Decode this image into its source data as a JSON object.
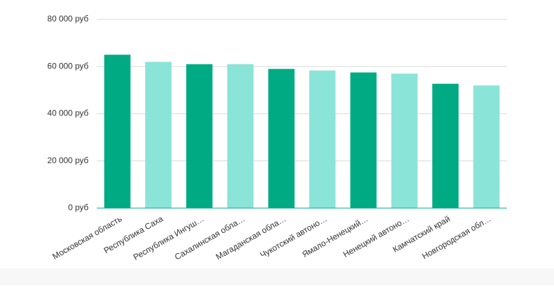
{
  "chart_data": {
    "type": "bar",
    "categories": [
      "Московская область",
      "Республика Саха",
      "Республика Ингуш…",
      "Сахалинская обла…",
      "Магаданская обла…",
      "Чукотский автоно…",
      "Ямало-Ненецкий…",
      "Ненецкий автоно…",
      "Камчатский край",
      "Новгородская обл…"
    ],
    "values": [
      65000,
      62000,
      61000,
      61000,
      59000,
      58300,
      57500,
      57000,
      52700,
      52000
    ],
    "colors": [
      "#00ab84",
      "#8be4d8",
      "#00ab84",
      "#8be4d8",
      "#00ab84",
      "#8be4d8",
      "#00ab84",
      "#8be4d8",
      "#00ab84",
      "#8be4d8"
    ],
    "ylim": [
      0,
      80000
    ],
    "yticks": [
      {
        "value": 0,
        "label": "0 руб"
      },
      {
        "value": 20000,
        "label": "20 000 руб"
      },
      {
        "value": 40000,
        "label": "40 000 руб"
      },
      {
        "value": 60000,
        "label": "60 000 руб"
      },
      {
        "value": 80000,
        "label": "80 000 руб"
      }
    ],
    "grid": true
  }
}
